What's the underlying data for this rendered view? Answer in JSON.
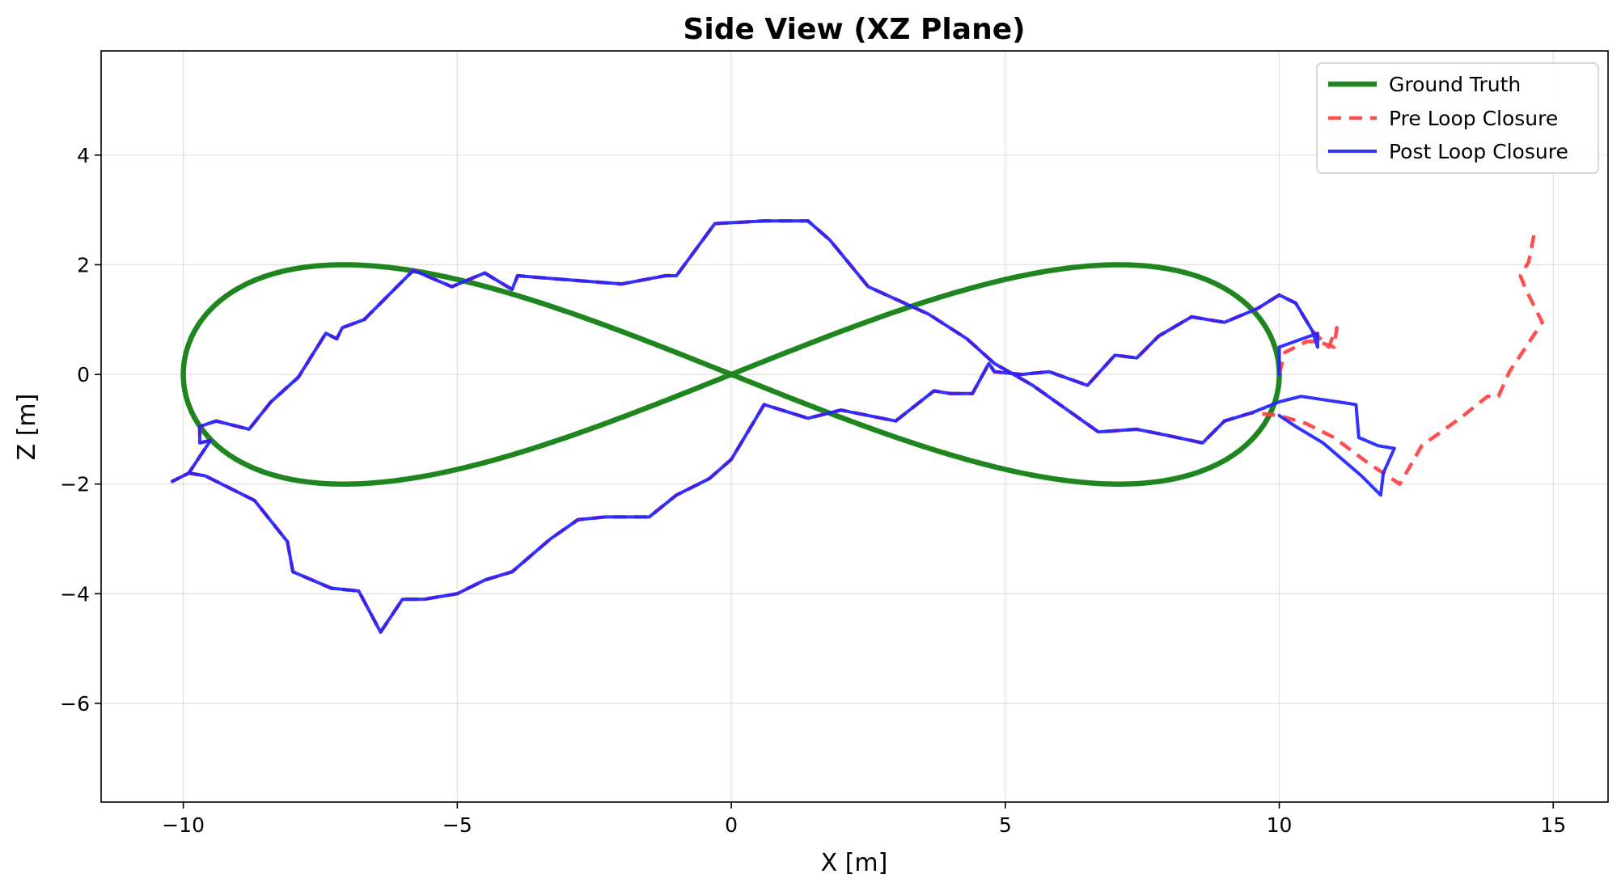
{
  "chart_data": {
    "type": "line",
    "title": "Side View (XZ Plane)",
    "xlabel": "X [m]",
    "ylabel": "Z [m]",
    "xlim": [
      -11.5,
      16.0
    ],
    "ylim": [
      -7.8,
      5.9
    ],
    "xticks": [
      -10,
      -5,
      0,
      5,
      10,
      15
    ],
    "yticks": [
      -6,
      -4,
      -2,
      0,
      2,
      4
    ],
    "xtick_labels": [
      "−10",
      "−5",
      "0",
      "5",
      "10",
      "15"
    ],
    "ytick_labels": [
      "−6",
      "−4",
      "−2",
      "0",
      "2",
      "4"
    ],
    "grid": true,
    "legend_position": "top-right",
    "series": [
      {
        "name": "Ground Truth",
        "kind": "parametric-lemniscate",
        "amplitude_x": 10,
        "amplitude_z": 2,
        "color": "#138013",
        "style": "solid"
      },
      {
        "name": "Pre Loop Closure",
        "color": "#ff4444",
        "style": "dashed",
        "points": [
          [
            10.0,
            0.0
          ],
          [
            10.1,
            0.4
          ],
          [
            10.5,
            0.6
          ],
          [
            10.7,
            0.6
          ],
          [
            11.0,
            0.5
          ],
          [
            11.05,
            0.85
          ],
          [
            10.9,
            0.5
          ],
          [
            10.6,
            0.8
          ],
          [
            10.3,
            1.3
          ],
          [
            10.0,
            1.45
          ],
          [
            9.6,
            1.2
          ],
          [
            9.0,
            0.95
          ],
          [
            8.4,
            1.05
          ],
          [
            7.8,
            0.7
          ],
          [
            7.4,
            0.3
          ],
          [
            7.0,
            0.35
          ],
          [
            6.5,
            -0.2
          ],
          [
            5.8,
            0.05
          ],
          [
            5.3,
            0.0
          ],
          [
            4.8,
            0.05
          ],
          [
            4.7,
            0.2
          ],
          [
            4.4,
            -0.35
          ],
          [
            4.0,
            -0.35
          ],
          [
            3.7,
            -0.3
          ],
          [
            3.0,
            -0.85
          ],
          [
            2.0,
            -0.65
          ],
          [
            1.4,
            -0.8
          ],
          [
            0.6,
            -0.55
          ],
          [
            0.0,
            -1.55
          ],
          [
            -0.4,
            -1.9
          ],
          [
            -1.0,
            -2.2
          ],
          [
            -1.5,
            -2.6
          ],
          [
            -2.3,
            -2.6
          ],
          [
            -2.8,
            -2.65
          ],
          [
            -3.3,
            -3.0
          ],
          [
            -4.0,
            -3.6
          ],
          [
            -4.5,
            -3.75
          ],
          [
            -5.0,
            -4.0
          ],
          [
            -5.6,
            -4.1
          ],
          [
            -6.0,
            -4.1
          ],
          [
            -6.4,
            -4.7
          ],
          [
            -6.8,
            -3.95
          ],
          [
            -7.3,
            -3.9
          ],
          [
            -8.0,
            -3.6
          ],
          [
            -8.1,
            -3.05
          ],
          [
            -8.7,
            -2.3
          ],
          [
            -9.2,
            -2.05
          ],
          [
            -9.6,
            -1.85
          ],
          [
            -9.9,
            -1.8
          ],
          [
            -10.2,
            -1.95
          ],
          [
            -9.9,
            -1.8
          ],
          [
            -9.7,
            -1.5
          ],
          [
            -9.5,
            -1.2
          ],
          [
            -9.7,
            -1.25
          ],
          [
            -9.7,
            -0.95
          ],
          [
            -9.4,
            -0.85
          ],
          [
            -8.8,
            -1.0
          ],
          [
            -8.4,
            -0.5
          ],
          [
            -7.9,
            -0.05
          ],
          [
            -7.4,
            0.75
          ],
          [
            -7.2,
            0.65
          ],
          [
            -7.1,
            0.85
          ],
          [
            -6.7,
            1.0
          ],
          [
            -5.8,
            1.9
          ],
          [
            -5.1,
            1.6
          ],
          [
            -4.5,
            1.85
          ],
          [
            -4.0,
            1.55
          ],
          [
            -3.9,
            1.8
          ],
          [
            -3.3,
            1.75
          ],
          [
            -2.0,
            1.65
          ],
          [
            -1.2,
            1.8
          ],
          [
            -1.0,
            1.8
          ],
          [
            -0.3,
            2.75
          ],
          [
            0.6,
            2.8
          ],
          [
            1.4,
            2.8
          ],
          [
            1.8,
            2.45
          ],
          [
            2.5,
            1.6
          ],
          [
            3.6,
            1.1
          ],
          [
            4.3,
            0.65
          ],
          [
            4.8,
            0.2
          ],
          [
            5.5,
            -0.2
          ],
          [
            6.7,
            -1.05
          ],
          [
            7.4,
            -1.0
          ],
          [
            7.9,
            -1.1
          ],
          [
            8.6,
            -1.25
          ],
          [
            9.0,
            -0.85
          ],
          [
            9.5,
            -0.7
          ],
          [
            10.0,
            -0.75
          ],
          [
            10.5,
            -0.9
          ],
          [
            11.0,
            -1.15
          ],
          [
            11.6,
            -1.6
          ],
          [
            12.2,
            -2.0
          ],
          [
            12.6,
            -1.3
          ],
          [
            13.3,
            -0.8
          ],
          [
            13.8,
            -0.4
          ],
          [
            14.0,
            -0.4
          ],
          [
            14.2,
            0.05
          ],
          [
            14.8,
            0.95
          ],
          [
            14.5,
            1.55
          ],
          [
            14.4,
            1.8
          ],
          [
            14.55,
            2.05
          ],
          [
            14.65,
            2.55
          ]
        ]
      },
      {
        "name": "Post Loop Closure",
        "color": "#2222ff",
        "style": "solid",
        "points": [
          [
            10.0,
            0.0
          ],
          [
            10.0,
            0.5
          ],
          [
            10.7,
            0.75
          ],
          [
            10.7,
            0.5
          ],
          [
            10.6,
            0.8
          ],
          [
            10.3,
            1.3
          ],
          [
            10.0,
            1.45
          ],
          [
            9.6,
            1.2
          ],
          [
            9.0,
            0.95
          ],
          [
            8.4,
            1.05
          ],
          [
            7.8,
            0.7
          ],
          [
            7.4,
            0.3
          ],
          [
            7.0,
            0.35
          ],
          [
            6.5,
            -0.2
          ],
          [
            5.8,
            0.05
          ],
          [
            5.3,
            0.0
          ],
          [
            4.8,
            0.05
          ],
          [
            4.7,
            0.2
          ],
          [
            4.4,
            -0.35
          ],
          [
            4.0,
            -0.35
          ],
          [
            3.7,
            -0.3
          ],
          [
            3.0,
            -0.85
          ],
          [
            2.0,
            -0.65
          ],
          [
            1.4,
            -0.8
          ],
          [
            0.6,
            -0.55
          ],
          [
            0.0,
            -1.55
          ],
          [
            -0.4,
            -1.9
          ],
          [
            -1.0,
            -2.2
          ],
          [
            -1.5,
            -2.6
          ],
          [
            -2.3,
            -2.6
          ],
          [
            -2.8,
            -2.65
          ],
          [
            -3.3,
            -3.0
          ],
          [
            -4.0,
            -3.6
          ],
          [
            -4.5,
            -3.75
          ],
          [
            -5.0,
            -4.0
          ],
          [
            -5.6,
            -4.1
          ],
          [
            -6.0,
            -4.1
          ],
          [
            -6.4,
            -4.7
          ],
          [
            -6.8,
            -3.95
          ],
          [
            -7.3,
            -3.9
          ],
          [
            -8.0,
            -3.6
          ],
          [
            -8.1,
            -3.05
          ],
          [
            -8.7,
            -2.3
          ],
          [
            -9.2,
            -2.05
          ],
          [
            -9.6,
            -1.85
          ],
          [
            -9.9,
            -1.8
          ],
          [
            -10.2,
            -1.95
          ],
          [
            -9.9,
            -1.8
          ],
          [
            -9.7,
            -1.5
          ],
          [
            -9.5,
            -1.2
          ],
          [
            -9.7,
            -1.25
          ],
          [
            -9.7,
            -0.95
          ],
          [
            -9.4,
            -0.85
          ],
          [
            -8.8,
            -1.0
          ],
          [
            -8.4,
            -0.5
          ],
          [
            -7.9,
            -0.05
          ],
          [
            -7.4,
            0.75
          ],
          [
            -7.2,
            0.65
          ],
          [
            -7.1,
            0.85
          ],
          [
            -6.7,
            1.0
          ],
          [
            -5.8,
            1.9
          ],
          [
            -5.1,
            1.6
          ],
          [
            -4.5,
            1.85
          ],
          [
            -4.0,
            1.55
          ],
          [
            -3.9,
            1.8
          ],
          [
            -3.3,
            1.75
          ],
          [
            -2.0,
            1.65
          ],
          [
            -1.2,
            1.8
          ],
          [
            -1.0,
            1.8
          ],
          [
            -0.3,
            2.75
          ],
          [
            0.6,
            2.8
          ],
          [
            1.4,
            2.8
          ],
          [
            1.8,
            2.45
          ],
          [
            2.5,
            1.6
          ],
          [
            3.6,
            1.1
          ],
          [
            4.3,
            0.65
          ],
          [
            4.8,
            0.2
          ],
          [
            5.5,
            -0.2
          ],
          [
            6.7,
            -1.05
          ],
          [
            7.4,
            -1.0
          ],
          [
            7.9,
            -1.1
          ],
          [
            8.6,
            -1.25
          ],
          [
            9.0,
            -0.85
          ],
          [
            9.5,
            -0.7
          ],
          [
            10.0,
            -0.5
          ],
          [
            10.4,
            -0.4
          ],
          [
            11.4,
            -0.55
          ],
          [
            11.45,
            -1.15
          ],
          [
            11.8,
            -1.3
          ],
          [
            12.1,
            -1.35
          ],
          [
            11.9,
            -1.8
          ],
          [
            11.85,
            -2.2
          ],
          [
            11.5,
            -1.85
          ],
          [
            10.8,
            -1.25
          ],
          [
            10.3,
            -0.95
          ],
          [
            10.0,
            -0.75
          ]
        ]
      }
    ]
  }
}
